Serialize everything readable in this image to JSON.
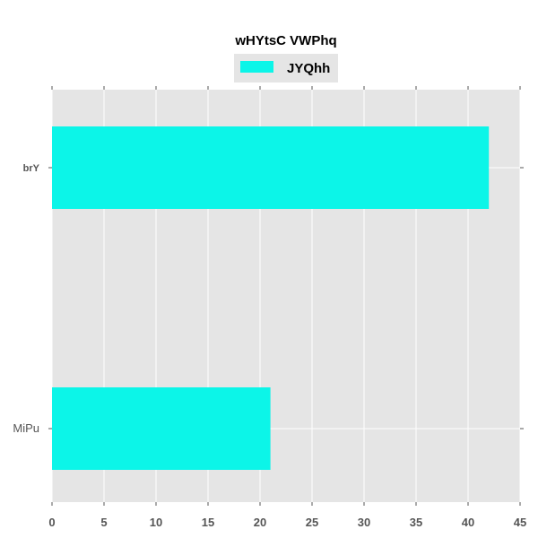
{
  "chart_data": {
    "type": "bar",
    "orientation": "horizontal",
    "title": "wHYtsC VWPhq",
    "xlabel": "",
    "ylabel": "",
    "categories": [
      "brY",
      "MiPu"
    ],
    "series": [
      {
        "name": "JYQhh",
        "values": [
          42,
          21
        ]
      }
    ],
    "xlim": [
      0,
      45
    ],
    "x_ticks": [
      0,
      5,
      10,
      15,
      20,
      25,
      30,
      35,
      40,
      45
    ],
    "grid": true,
    "legend_position": "top-center",
    "colors": {
      "bar": "#0cf5e8",
      "plot_background": "#e5e5e5",
      "grid": "#ffffff",
      "tick_label": "#555555"
    }
  }
}
